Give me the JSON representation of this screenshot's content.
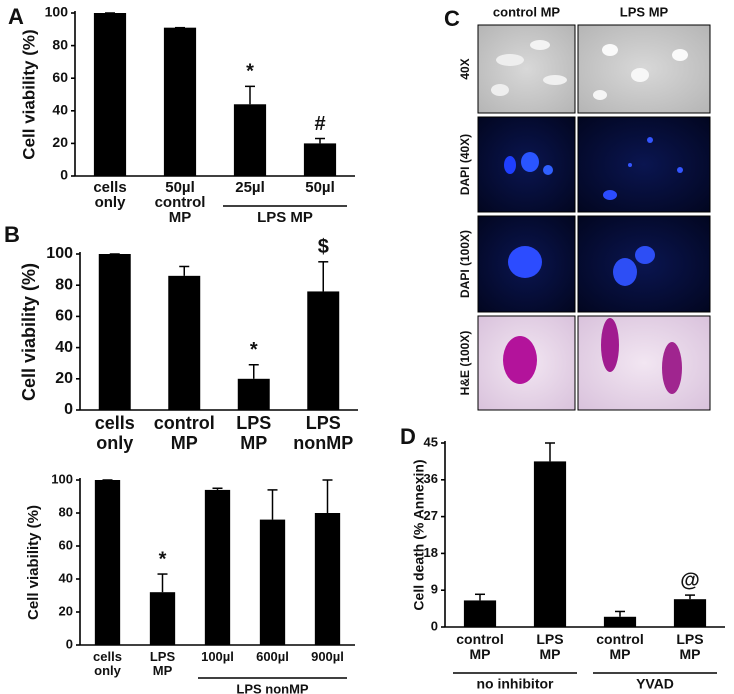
{
  "chart_data": [
    {
      "type": "bar",
      "panel_label": "A",
      "ylabel": "Cell viability (%)",
      "categories": [
        "cells only",
        "50µl control MP",
        "25µl",
        "50µl"
      ],
      "values": [
        100,
        91,
        44,
        20
      ],
      "errors": [
        0,
        0,
        11,
        3
      ],
      "markers": [
        null,
        null,
        "*",
        "#"
      ],
      "color": "#000000",
      "groups": [
        {
          "label": "LPS MP",
          "span": [
            2,
            3
          ]
        }
      ],
      "ylim": [
        0,
        100
      ],
      "yticks": [
        0,
        20,
        40,
        60,
        80,
        100
      ],
      "grid": false
    },
    {
      "type": "bar",
      "panel_label": "B",
      "ylabel": "Cell viability (%)",
      "categories": [
        "cells only",
        "control MP",
        "LPS MP",
        "LPS nonMP"
      ],
      "values": [
        100,
        86,
        20,
        76
      ],
      "errors": [
        0,
        6,
        9,
        19
      ],
      "markers": [
        null,
        null,
        "*",
        "$"
      ],
      "color": "#000000",
      "ylim": [
        0,
        100
      ],
      "yticks": [
        0,
        20,
        40,
        60,
        80,
        100
      ],
      "grid": false
    },
    {
      "type": "bar",
      "ylabel": "Cell viability (%)",
      "categories": [
        "cells only",
        "LPS MP",
        "100µl",
        "600µl",
        "900µl"
      ],
      "values": [
        100,
        32,
        94,
        76,
        80
      ],
      "errors": [
        0,
        11,
        1,
        18,
        20
      ],
      "markers": [
        null,
        "*",
        null,
        null,
        null
      ],
      "color": "#000000",
      "groups": [
        {
          "label": "LPS nonMP",
          "span": [
            2,
            4
          ]
        }
      ],
      "ylim": [
        0,
        100
      ],
      "yticks": [
        0,
        20,
        40,
        60,
        80,
        100
      ],
      "grid": false
    },
    {
      "type": "bar",
      "panel_label": "D",
      "ylabel": "Cell death (% Annexin)",
      "categories": [
        "control MP",
        "LPS MP",
        "control MP",
        "LPS MP"
      ],
      "values": [
        6.5,
        40.5,
        2.5,
        6.8
      ],
      "errors": [
        1.5,
        4.5,
        1.3,
        1
      ],
      "markers": [
        null,
        null,
        null,
        "@"
      ],
      "color": "#000000",
      "groups": [
        {
          "label": "no inhibitor",
          "span": [
            0,
            1
          ]
        },
        {
          "label": "YVAD",
          "span": [
            2,
            3
          ]
        }
      ],
      "ylim": [
        0,
        45
      ],
      "yticks": [
        0,
        9,
        18,
        27,
        36,
        45
      ],
      "grid": false
    }
  ],
  "panel_c": {
    "label": "C",
    "columns": [
      "control MP",
      "LPS MP"
    ],
    "rows": [
      "40X",
      "DAPI (40X)",
      "DAPI (100X)",
      "H&E (100X)"
    ]
  }
}
